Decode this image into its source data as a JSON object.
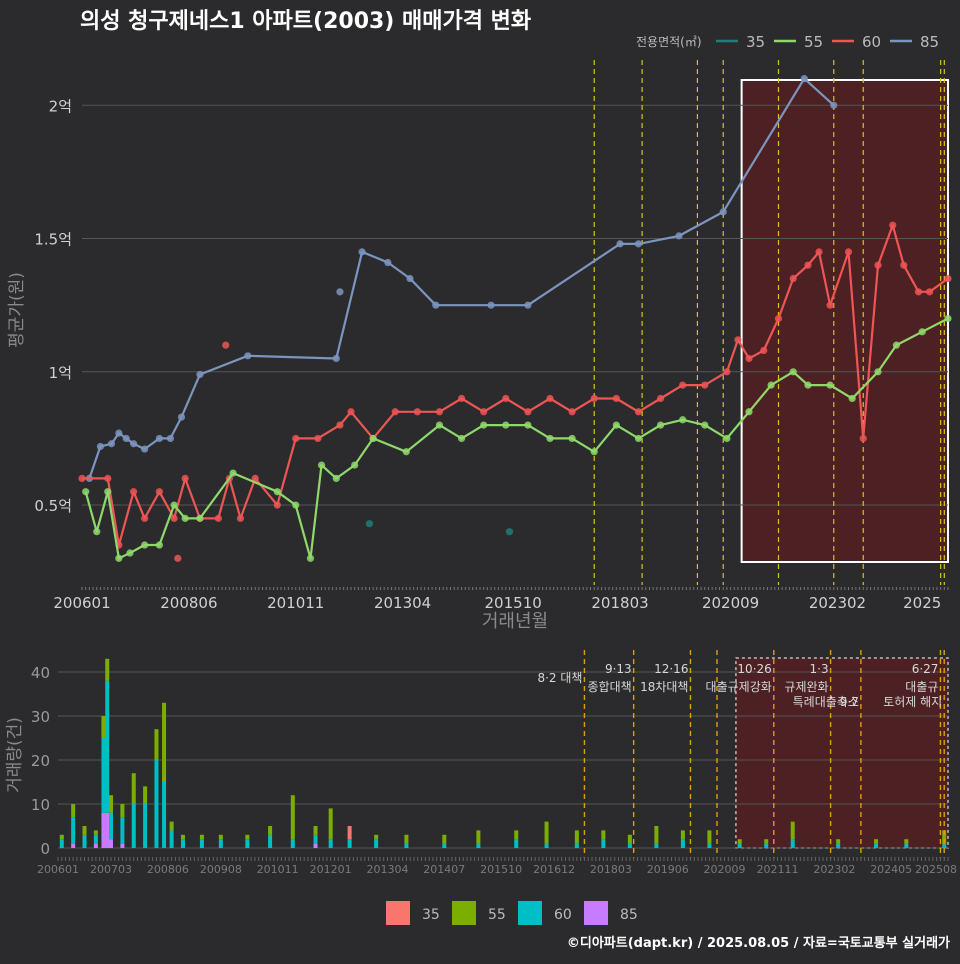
{
  "chart_data": [
    {
      "type": "line",
      "title": "의성 청구제네스1 아파트(2003) 매매가격 변화",
      "xlabel": "거래년월",
      "ylabel": "평균가(원)",
      "x_ticks": [
        "200601",
        "200806",
        "201011",
        "201304",
        "201510",
        "201803",
        "202009",
        "202302",
        "2025"
      ],
      "y_ticks": [
        {
          "value": 0.5,
          "label": "0.5억"
        },
        {
          "value": 1.0,
          "label": "1억"
        },
        {
          "value": 1.5,
          "label": "1.5억"
        },
        {
          "value": 2.0,
          "label": "2억"
        }
      ],
      "ylim": [
        0.2,
        2.2
      ],
      "x_range": [
        "2006-01",
        "2025-08"
      ],
      "y_unit": "억원",
      "legend": {
        "title": "전용면적(㎡)",
        "position": "top-right",
        "entries": [
          {
            "label": "35",
            "color": "#1f7f7f"
          },
          {
            "label": "55",
            "color": "#8fd96b"
          },
          {
            "label": "60",
            "color": "#ee5555"
          },
          {
            "label": "85",
            "color": "#7c95bf"
          }
        ]
      },
      "highlight_range": [
        "2020-12",
        "2025-08"
      ],
      "policy_lines": [
        "2017-08",
        "2018-09",
        "2019-12",
        "2020-07",
        "2021-10",
        "2023-01",
        "2023-09",
        "2025-06",
        "2025-07"
      ],
      "series": [
        {
          "name": "85",
          "color": "#7c95bf",
          "points": [
            [
              "2006-03",
              0.6
            ],
            [
              "2006-06",
              0.72
            ],
            [
              "2006-09",
              0.73
            ],
            [
              "2006-11",
              0.77
            ],
            [
              "2007-01",
              0.75
            ],
            [
              "2007-03",
              0.73
            ],
            [
              "2007-06",
              0.71
            ],
            [
              "2007-10",
              0.75
            ],
            [
              "2008-01",
              0.75
            ],
            [
              "2008-04",
              0.83
            ],
            [
              "2008-09",
              0.99
            ],
            [
              "2009-10",
              1.06
            ],
            [
              "2011-10",
              1.05
            ],
            [
              "2012-05",
              1.45
            ],
            [
              "2012-12",
              1.41
            ],
            [
              "2013-06",
              1.35
            ],
            [
              "2014-01",
              1.25
            ],
            [
              "2015-04",
              1.25
            ],
            [
              "2016-02",
              1.25
            ],
            [
              "2018-03",
              1.48
            ],
            [
              "2018-08",
              1.48
            ],
            [
              "2019-07",
              1.51
            ],
            [
              "2020-07",
              1.6
            ],
            [
              "2022-05",
              2.1
            ],
            [
              "2023-01",
              2.0
            ]
          ],
          "extra_points": [
            [
              "2011-11",
              1.3
            ]
          ]
        },
        {
          "name": "60",
          "color": "#ee5555",
          "points": [
            [
              "2006-01",
              0.6
            ],
            [
              "2006-08",
              0.6
            ],
            [
              "2006-11",
              0.35
            ],
            [
              "2007-03",
              0.55
            ],
            [
              "2007-06",
              0.45
            ],
            [
              "2007-10",
              0.55
            ],
            [
              "2008-02",
              0.45
            ],
            [
              "2008-05",
              0.6
            ],
            [
              "2008-09",
              0.45
            ],
            [
              "2009-02",
              0.45
            ],
            [
              "2009-05",
              0.6
            ],
            [
              "2009-08",
              0.45
            ],
            [
              "2009-12",
              0.6
            ],
            [
              "2010-06",
              0.5
            ],
            [
              "2010-11",
              0.75
            ],
            [
              "2011-05",
              0.75
            ],
            [
              "2011-11",
              0.8
            ],
            [
              "2012-02",
              0.85
            ],
            [
              "2012-08",
              0.75
            ],
            [
              "2013-02",
              0.85
            ],
            [
              "2013-08",
              0.85
            ],
            [
              "2014-02",
              0.85
            ],
            [
              "2014-08",
              0.9
            ],
            [
              "2015-02",
              0.85
            ],
            [
              "2015-08",
              0.9
            ],
            [
              "2016-02",
              0.85
            ],
            [
              "2016-08",
              0.9
            ],
            [
              "2017-02",
              0.85
            ],
            [
              "2017-08",
              0.9
            ],
            [
              "2018-02",
              0.9
            ],
            [
              "2018-08",
              0.85
            ],
            [
              "2019-02",
              0.9
            ],
            [
              "2019-08",
              0.95
            ],
            [
              "2020-02",
              0.95
            ],
            [
              "2020-08",
              1.0
            ],
            [
              "2020-11",
              1.12
            ],
            [
              "2021-02",
              1.05
            ],
            [
              "2021-06",
              1.08
            ],
            [
              "2021-10",
              1.2
            ],
            [
              "2022-02",
              1.35
            ],
            [
              "2022-06",
              1.4
            ],
            [
              "2022-09",
              1.45
            ],
            [
              "2022-12",
              1.25
            ],
            [
              "2023-05",
              1.45
            ],
            [
              "2023-09",
              0.75
            ],
            [
              "2024-01",
              1.4
            ],
            [
              "2024-05",
              1.55
            ],
            [
              "2024-08",
              1.4
            ],
            [
              "2024-12",
              1.3
            ],
            [
              "2025-03",
              1.3
            ],
            [
              "2025-08",
              1.35
            ]
          ],
          "extra_points": [
            [
              "2009-04",
              1.1
            ],
            [
              "2008-03",
              0.3
            ]
          ]
        },
        {
          "name": "55",
          "color": "#8fd96b",
          "points": [
            [
              "2006-02",
              0.55
            ],
            [
              "2006-05",
              0.4
            ],
            [
              "2006-08",
              0.55
            ],
            [
              "2006-11",
              0.3
            ],
            [
              "2007-02",
              0.32
            ],
            [
              "2007-06",
              0.35
            ],
            [
              "2007-10",
              0.35
            ],
            [
              "2008-02",
              0.5
            ],
            [
              "2008-05",
              0.45
            ],
            [
              "2008-09",
              0.45
            ],
            [
              "2009-06",
              0.62
            ],
            [
              "2010-06",
              0.55
            ],
            [
              "2010-11",
              0.5
            ],
            [
              "2011-03",
              0.3
            ],
            [
              "2011-06",
              0.65
            ],
            [
              "2011-10",
              0.6
            ],
            [
              "2012-03",
              0.65
            ],
            [
              "2012-08",
              0.75
            ],
            [
              "2013-05",
              0.7
            ],
            [
              "2014-02",
              0.8
            ],
            [
              "2014-08",
              0.75
            ],
            [
              "2015-02",
              0.8
            ],
            [
              "2015-08",
              0.8
            ],
            [
              "2016-02",
              0.8
            ],
            [
              "2016-08",
              0.75
            ],
            [
              "2017-02",
              0.75
            ],
            [
              "2017-08",
              0.7
            ],
            [
              "2018-02",
              0.8
            ],
            [
              "2018-08",
              0.75
            ],
            [
              "2019-02",
              0.8
            ],
            [
              "2019-08",
              0.82
            ],
            [
              "2020-02",
              0.8
            ],
            [
              "2020-08",
              0.75
            ],
            [
              "2021-02",
              0.85
            ],
            [
              "2021-08",
              0.95
            ],
            [
              "2022-02",
              1.0
            ],
            [
              "2022-06",
              0.95
            ],
            [
              "2022-12",
              0.95
            ],
            [
              "2023-06",
              0.9
            ],
            [
              "2024-01",
              1.0
            ],
            [
              "2024-06",
              1.1
            ],
            [
              "2025-01",
              1.15
            ],
            [
              "2025-08",
              1.2
            ]
          ]
        },
        {
          "name": "35",
          "color": "#1f7f7f",
          "points": [],
          "extra_points": [
            [
              "2012-07",
              0.43
            ],
            [
              "2015-09",
              0.4
            ]
          ]
        }
      ]
    },
    {
      "type": "bar",
      "stacked": true,
      "ylabel": "거래량(건)",
      "x_ticks": [
        "200601",
        "200703",
        "200806",
        "200908",
        "201011",
        "201201",
        "201304",
        "201407",
        "201510",
        "201612",
        "201803",
        "201906",
        "202009",
        "202111",
        "202302",
        "202405",
        "202508"
      ],
      "y_ticks": [
        0,
        10,
        20,
        30,
        40
      ],
      "ylim": [
        0,
        45
      ],
      "highlight_range": [
        "2020-12",
        "2025-08"
      ],
      "legend": {
        "position": "bottom",
        "entries": [
          {
            "label": "35",
            "color": "#f8766d"
          },
          {
            "label": "55",
            "color": "#7cae00"
          },
          {
            "label": "60",
            "color": "#00bfc4"
          },
          {
            "label": "85",
            "color": "#c77cff"
          }
        ]
      },
      "annotations": [
        {
          "date": "2017-08",
          "lines": [
            "8·2 대책"
          ]
        },
        {
          "date": "2018-09",
          "lines": [
            "9·13",
            "종합대책"
          ]
        },
        {
          "date": "2019-12",
          "lines": [
            "12·16",
            "18차대책"
          ]
        },
        {
          "date": "2020-07",
          "lines": []
        },
        {
          "date": "2021-10",
          "lines": [
            "10·26",
            "대출규제강화"
          ]
        },
        {
          "date": "2023-01",
          "lines": [
            "1·3",
            "규제완화"
          ]
        },
        {
          "date": "2023-09",
          "lines": [
            "9·7",
            "특례대출축소"
          ]
        },
        {
          "date": "2025-06",
          "lines": [
            "6·27",
            "대출규"
          ]
        },
        {
          "date": "2025-07",
          "lines": [
            "토허제 해지"
          ]
        }
      ],
      "bars": [
        {
          "date": "2006-02",
          "s35": 0,
          "s55": 1,
          "s60": 2,
          "s85": 0
        },
        {
          "date": "2006-05",
          "s35": 0,
          "s55": 3,
          "s60": 6,
          "s85": 1
        },
        {
          "date": "2006-08",
          "s35": 0,
          "s55": 2,
          "s60": 3,
          "s85": 0
        },
        {
          "date": "2006-11",
          "s35": 0,
          "s55": 1,
          "s60": 2,
          "s85": 1
        },
        {
          "date": "2007-01",
          "s35": 0,
          "s55": 5,
          "s60": 17,
          "s85": 8
        },
        {
          "date": "2007-02",
          "s35": 0,
          "s55": 5,
          "s60": 30,
          "s85": 8
        },
        {
          "date": "2007-03",
          "s35": 0,
          "s55": 4,
          "s60": 6,
          "s85": 2
        },
        {
          "date": "2007-06",
          "s35": 0,
          "s55": 3,
          "s60": 6,
          "s85": 1
        },
        {
          "date": "2007-09",
          "s35": 0,
          "s55": 7,
          "s60": 10,
          "s85": 0
        },
        {
          "date": "2007-12",
          "s35": 0,
          "s55": 4,
          "s60": 10,
          "s85": 0
        },
        {
          "date": "2008-03",
          "s35": 0,
          "s55": 7,
          "s60": 20,
          "s85": 0
        },
        {
          "date": "2008-05",
          "s35": 0,
          "s55": 18,
          "s60": 15,
          "s85": 0
        },
        {
          "date": "2008-07",
          "s35": 0,
          "s55": 2,
          "s60": 4,
          "s85": 0
        },
        {
          "date": "2008-10",
          "s35": 0,
          "s55": 1,
          "s60": 2,
          "s85": 0
        },
        {
          "date": "2009-03",
          "s35": 0,
          "s55": 1,
          "s60": 2,
          "s85": 0
        },
        {
          "date": "2009-08",
          "s35": 0,
          "s55": 1,
          "s60": 2,
          "s85": 0
        },
        {
          "date": "2010-03",
          "s35": 0,
          "s55": 1,
          "s60": 2,
          "s85": 0
        },
        {
          "date": "2010-09",
          "s35": 0,
          "s55": 2,
          "s60": 3,
          "s85": 0
        },
        {
          "date": "2011-03",
          "s35": 0,
          "s55": 10,
          "s60": 2,
          "s85": 0
        },
        {
          "date": "2011-09",
          "s35": 0,
          "s55": 2,
          "s60": 2,
          "s85": 1
        },
        {
          "date": "2012-01",
          "s35": 0,
          "s55": 7,
          "s60": 2,
          "s85": 0
        },
        {
          "date": "2012-06",
          "s35": 3,
          "s55": 0,
          "s60": 2,
          "s85": 0
        },
        {
          "date": "2013-01",
          "s35": 0,
          "s55": 1,
          "s60": 2,
          "s85": 0
        },
        {
          "date": "2013-09",
          "s35": 0,
          "s55": 2,
          "s60": 1,
          "s85": 0
        },
        {
          "date": "2014-07",
          "s35": 0,
          "s55": 2,
          "s60": 1,
          "s85": 0
        },
        {
          "date": "2015-04",
          "s35": 0,
          "s55": 3,
          "s60": 1,
          "s85": 0
        },
        {
          "date": "2016-02",
          "s35": 0,
          "s55": 2,
          "s60": 2,
          "s85": 0
        },
        {
          "date": "2016-10",
          "s35": 0,
          "s55": 5,
          "s60": 1,
          "s85": 0
        },
        {
          "date": "2017-06",
          "s35": 0,
          "s55": 3,
          "s60": 1,
          "s85": 0
        },
        {
          "date": "2018-01",
          "s35": 0,
          "s55": 2,
          "s60": 2,
          "s85": 0
        },
        {
          "date": "2018-08",
          "s35": 0,
          "s55": 2,
          "s60": 1,
          "s85": 0
        },
        {
          "date": "2019-03",
          "s35": 0,
          "s55": 4,
          "s60": 1,
          "s85": 0
        },
        {
          "date": "2019-10",
          "s35": 0,
          "s55": 2,
          "s60": 2,
          "s85": 0
        },
        {
          "date": "2020-05",
          "s35": 0,
          "s55": 3,
          "s60": 1,
          "s85": 0
        },
        {
          "date": "2021-01",
          "s35": 0,
          "s55": 1,
          "s60": 1,
          "s85": 0
        },
        {
          "date": "2021-08",
          "s35": 0,
          "s55": 1,
          "s60": 1,
          "s85": 0
        },
        {
          "date": "2022-03",
          "s35": 0,
          "s55": 4,
          "s60": 2,
          "s85": 0
        },
        {
          "date": "2023-03",
          "s35": 0,
          "s55": 1,
          "s60": 1,
          "s85": 0
        },
        {
          "date": "2024-01",
          "s35": 0,
          "s55": 1,
          "s60": 1,
          "s85": 0
        },
        {
          "date": "2024-09",
          "s35": 0,
          "s55": 1,
          "s60": 1,
          "s85": 0
        },
        {
          "date": "2025-07",
          "s35": 0,
          "s55": 3,
          "s60": 1,
          "s85": 0
        }
      ]
    }
  ],
  "footer": {
    "credit": "©디아파트(dapt.kr) / 2025.08.05 / 자료=국토교통부 실거래가"
  },
  "colors": {
    "background": "#2b2b2d",
    "highlight_fill": "#5a1e22",
    "policy_line_top": "#d4c61a",
    "policy_line_bottom": "#e0a000"
  }
}
